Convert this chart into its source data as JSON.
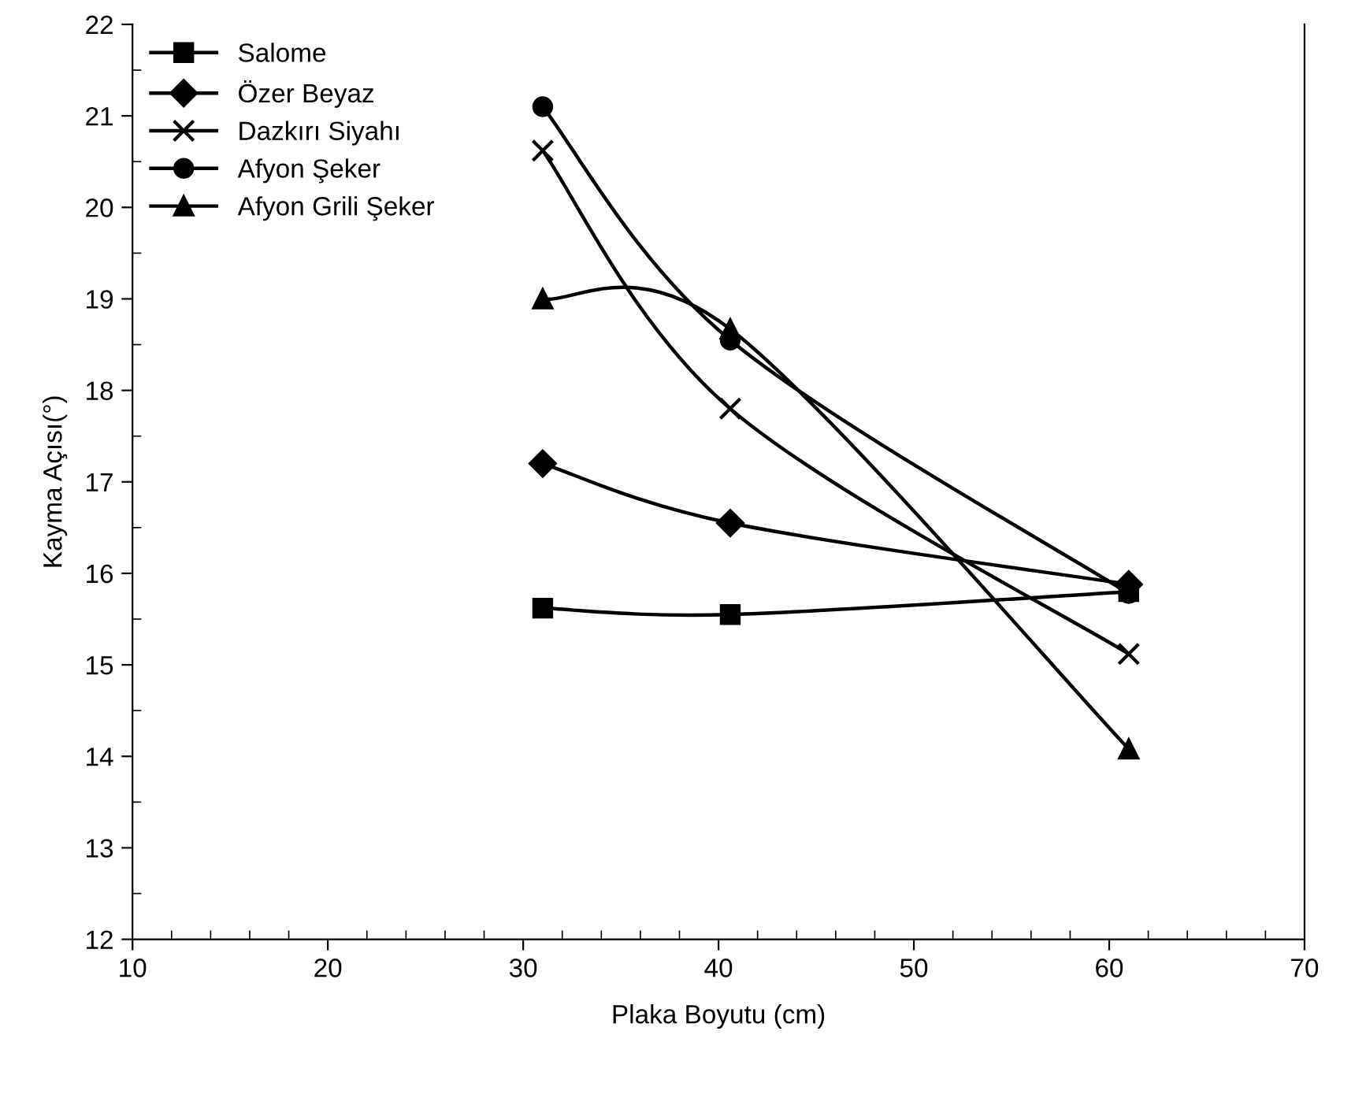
{
  "chart_data": {
    "type": "line",
    "xlabel": "Plaka Boyutu (cm)",
    "ylabel": "Kayma Açısı(°)",
    "xlim": [
      10,
      70
    ],
    "xticks": [
      10,
      20,
      30,
      40,
      50,
      60,
      70
    ],
    "ylim": [
      12,
      22
    ],
    "yticks": [
      12,
      13,
      14,
      15,
      16,
      17,
      18,
      19,
      20,
      21,
      22
    ],
    "grid": false,
    "legend": "top left",
    "line_style": "solid",
    "x": [
      31,
      40.6,
      61
    ],
    "series": [
      {
        "name": "Salome",
        "color": "#000000",
        "marker": "square",
        "values": [
          15.62,
          15.55,
          15.8
        ]
      },
      {
        "name": "Özer Beyaz",
        "color": "#000000",
        "marker": "diamond",
        "values": [
          17.2,
          16.55,
          15.88
        ]
      },
      {
        "name": "Dazkırı Siyahı",
        "color": "#000000",
        "marker": "cross",
        "values": [
          20.62,
          17.8,
          15.12
        ]
      },
      {
        "name": "Afyon Şeker",
        "color": "#000000",
        "marker": "circle",
        "values": [
          21.1,
          18.55,
          15.78
        ]
      },
      {
        "name": "Afyon Grili Şeker",
        "color": "#000000",
        "marker": "triangle",
        "values": [
          19.0,
          18.67,
          14.08
        ]
      }
    ]
  }
}
